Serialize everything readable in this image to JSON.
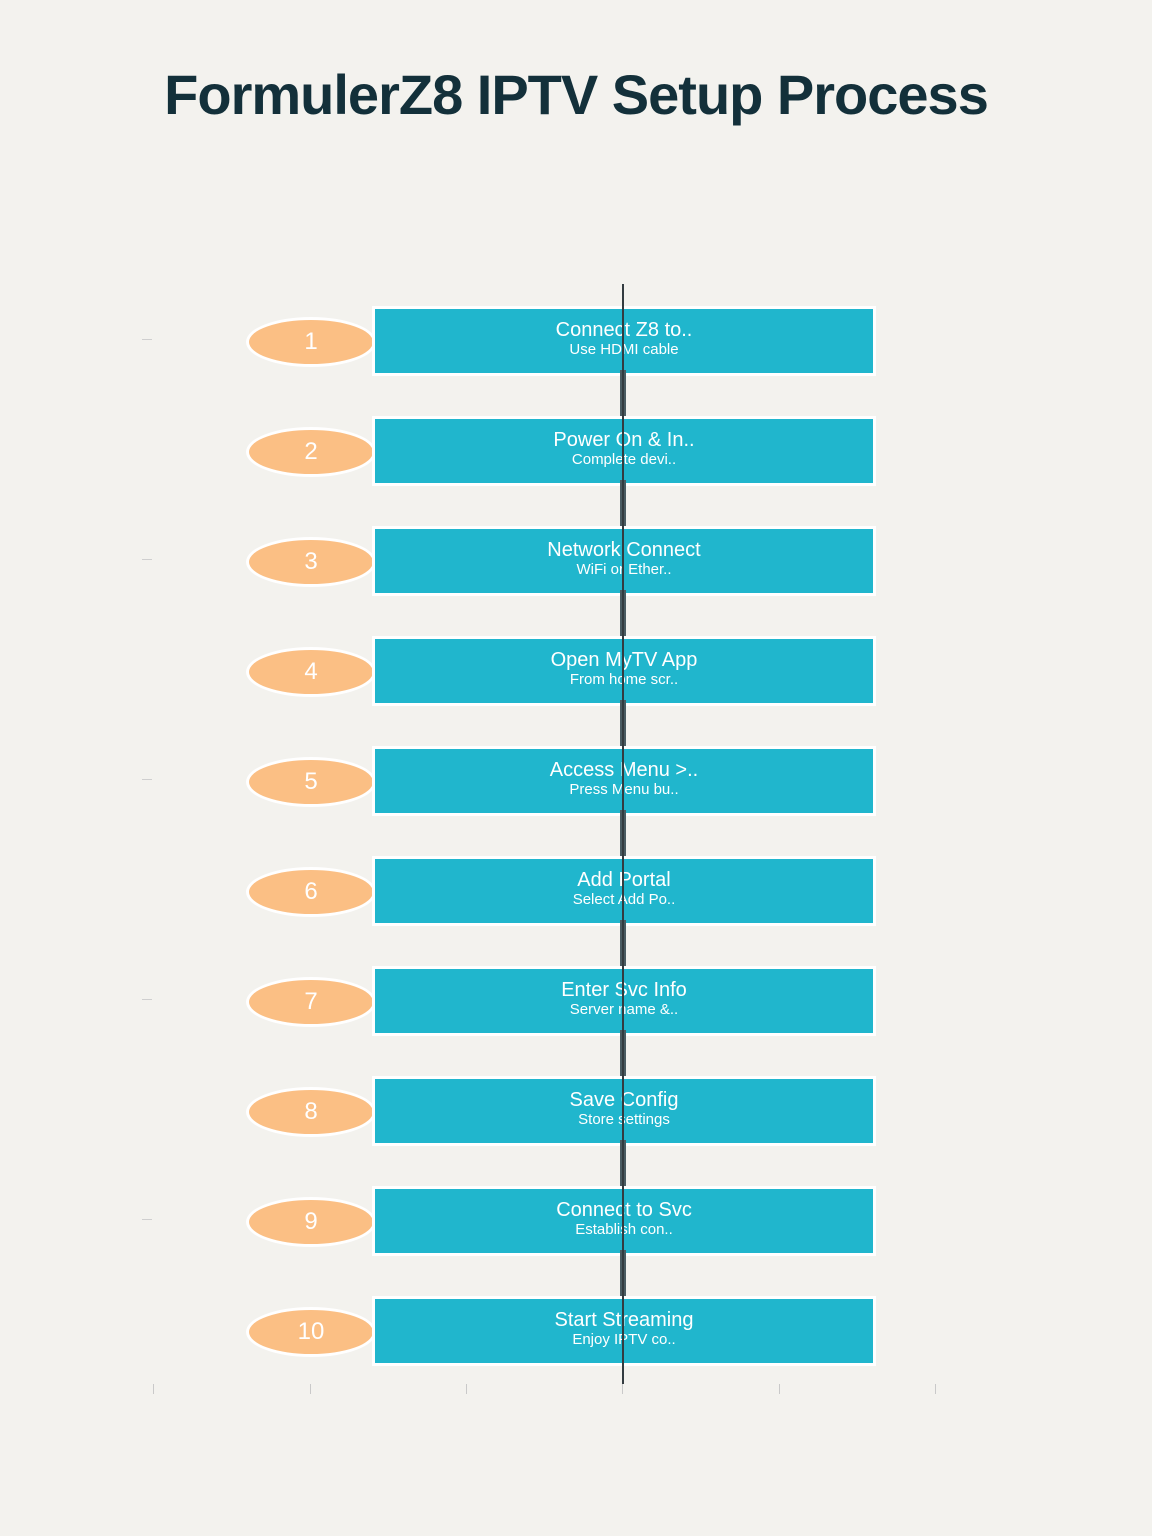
{
  "title": "FormulerZ8 IPTV Setup Process",
  "colors": {
    "background": "#f3f2ee",
    "step_box": "#20b6cd",
    "step_badge": "#fbbf84",
    "title": "#13303a",
    "connector": "#333c40"
  },
  "steps": [
    {
      "number": "1",
      "title": "Connect Z8 to..",
      "subtitle": "Use HDMI cable"
    },
    {
      "number": "2",
      "title": "Power On & In..",
      "subtitle": "Complete devi.."
    },
    {
      "number": "3",
      "title": "Network Connect",
      "subtitle": "WiFi or Ether.."
    },
    {
      "number": "4",
      "title": "Open MyTV App",
      "subtitle": "From home scr.."
    },
    {
      "number": "5",
      "title": "Access Menu >..",
      "subtitle": "Press Menu bu.."
    },
    {
      "number": "6",
      "title": "Add Portal",
      "subtitle": "Select Add Po.."
    },
    {
      "number": "7",
      "title": "Enter Svc Info",
      "subtitle": "Server name &.."
    },
    {
      "number": "8",
      "title": "Save Config",
      "subtitle": "Store settings"
    },
    {
      "number": "9",
      "title": "Connect to Svc",
      "subtitle": "Establish con.."
    },
    {
      "number": "10",
      "title": "Start Streaming",
      "subtitle": "Enjoy IPTV co.."
    }
  ]
}
